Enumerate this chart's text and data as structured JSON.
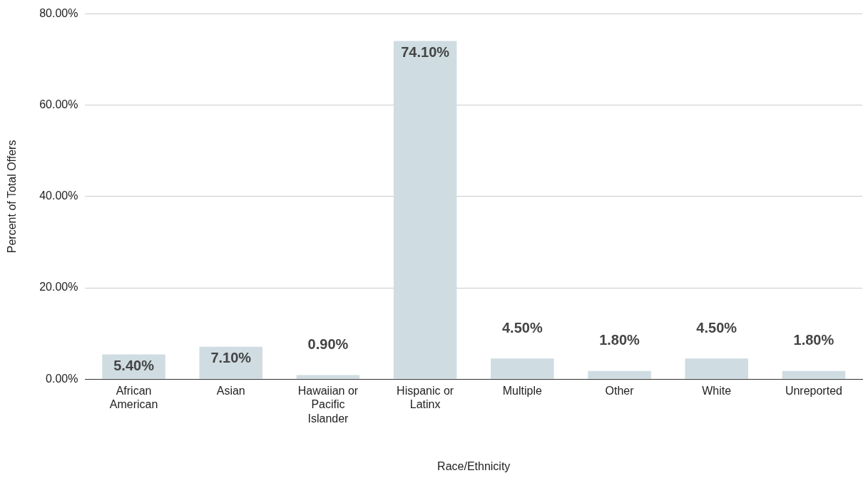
{
  "chart_data": {
    "type": "bar",
    "xlabel": "Race/Ethnicity",
    "ylabel": "Percent of Total Offers",
    "categories": [
      "African American",
      "Asian",
      "Hawaiian or Pacific Islander",
      "Hispanic or Latinx",
      "Multiple",
      "Other",
      "White",
      "Unreported"
    ],
    "values": [
      5.4,
      7.1,
      0.9,
      74.1,
      4.5,
      1.8,
      4.5,
      1.8
    ],
    "value_labels": [
      "5.40%",
      "7.10%",
      "0.90%",
      "74.10%",
      "4.50%",
      "1.80%",
      "4.50%",
      "1.80%"
    ],
    "color": "#cfdde2",
    "ylim": [
      0,
      80
    ],
    "yticks": [
      {
        "value": 0,
        "label": "0.00%"
      },
      {
        "value": 20,
        "label": "20.00%"
      },
      {
        "value": 40,
        "label": "40.00%"
      },
      {
        "value": 60,
        "label": "60.00%"
      },
      {
        "value": 80,
        "label": "80.00%"
      }
    ],
    "grid": "y",
    "legend": false
  }
}
